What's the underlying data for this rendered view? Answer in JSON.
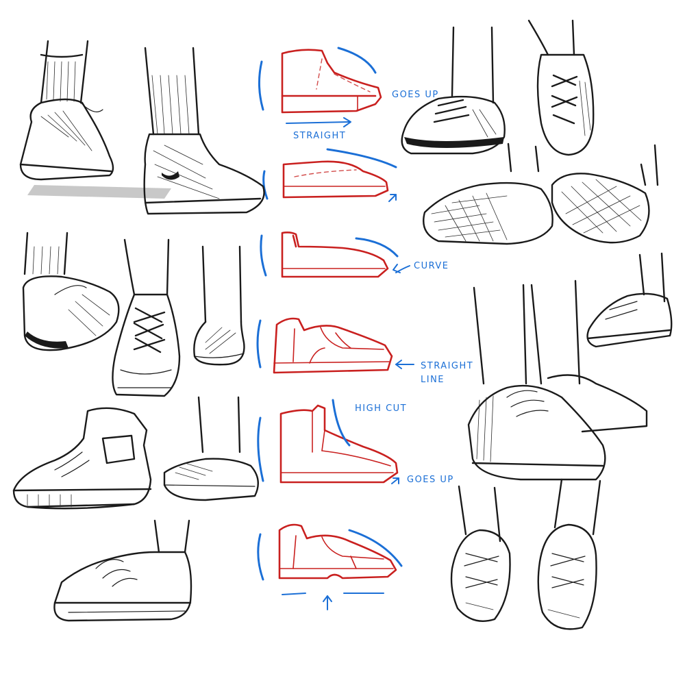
{
  "annotations": {
    "straight": "STRAIGHT",
    "goes_up_1": "GOES UP",
    "curve": "CURVE",
    "straight_line_1": "STRAIGHT",
    "straight_line_2": "LINE",
    "high_cut": "HIGH CUT",
    "goes_up_2": "GOES UP"
  },
  "colors": {
    "ink": "#1a1a1a",
    "construction_red": "#c9201f",
    "note_blue": "#1b6fd6",
    "background": "#ffffff"
  }
}
